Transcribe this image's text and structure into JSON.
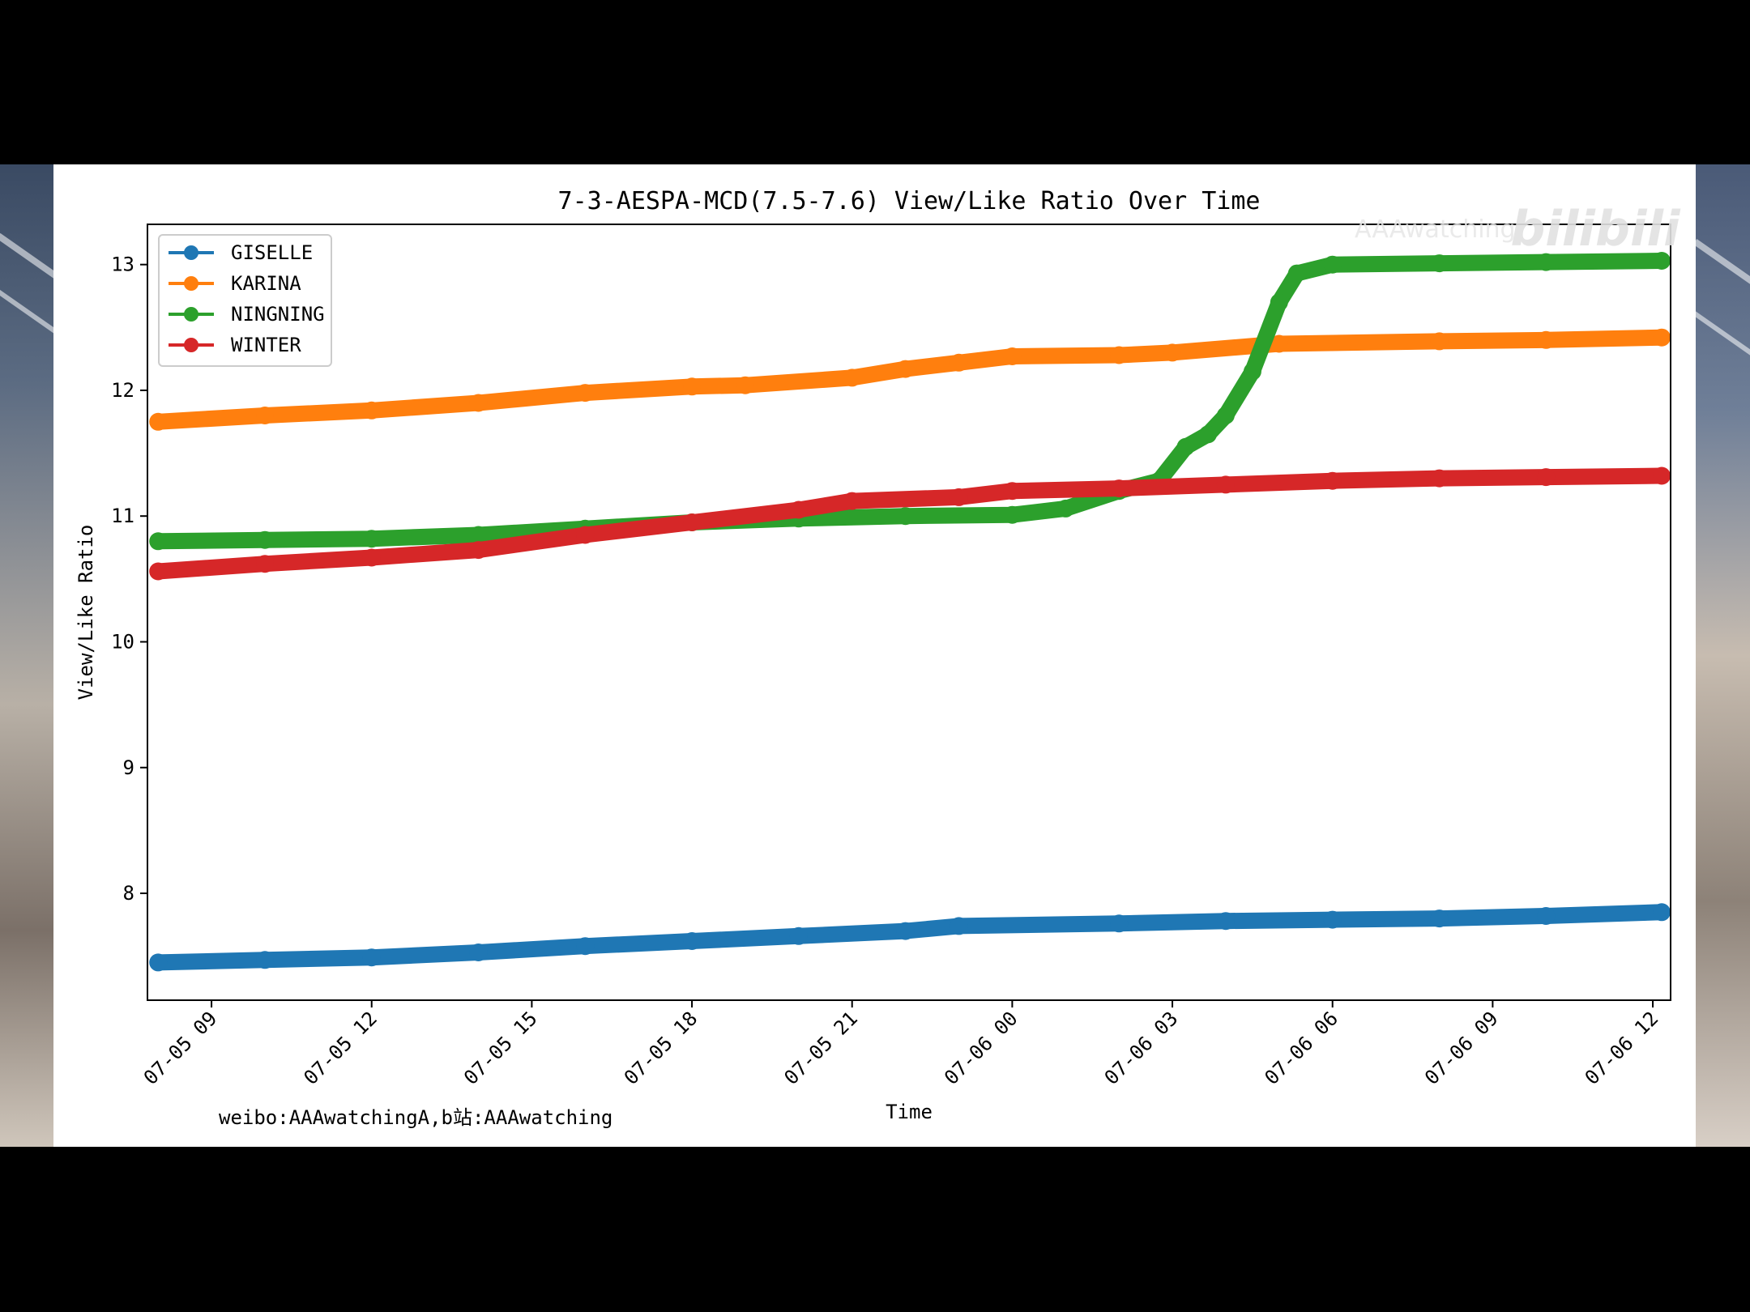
{
  "watermark": {
    "handle": "AAAwatching",
    "logo": "bilibili"
  },
  "chart_data": {
    "type": "scatter",
    "title": "7-3-AESPA-MCD(7.5-7.6) View/Like Ratio Over Time",
    "xlabel": "Time",
    "ylabel": "View/Like Ratio",
    "credit": "weibo:AAAwatchingA,b站:AAAwatching",
    "x_axis": {
      "kind": "datetime",
      "range": [
        "2024-07-05 07:48",
        "2024-07-06 12:20"
      ],
      "ticks": [
        "2024-07-05 09:00",
        "2024-07-05 12:00",
        "2024-07-05 15:00",
        "2024-07-05 18:00",
        "2024-07-05 21:00",
        "2024-07-06 00:00",
        "2024-07-06 03:00",
        "2024-07-06 06:00",
        "2024-07-06 09:00",
        "2024-07-06 12:00"
      ],
      "tick_labels": [
        "07-05 09",
        "07-05 12",
        "07-05 15",
        "07-05 18",
        "07-05 21",
        "07-06 00",
        "07-06 03",
        "07-06 06",
        "07-06 09",
        "07-06 12"
      ]
    },
    "y_axis": {
      "range": [
        7.15,
        13.32
      ],
      "ticks": [
        8,
        9,
        10,
        11,
        12,
        13
      ]
    },
    "grid": false,
    "legend_position": "top-left",
    "series": [
      {
        "name": "GISELLE",
        "color": "#1f77b4",
        "points": [
          [
            "2024-07-05 08:00",
            7.45
          ],
          [
            "2024-07-05 10:00",
            7.47
          ],
          [
            "2024-07-05 12:00",
            7.49
          ],
          [
            "2024-07-05 14:00",
            7.53
          ],
          [
            "2024-07-05 16:00",
            7.58
          ],
          [
            "2024-07-05 18:00",
            7.62
          ],
          [
            "2024-07-05 20:00",
            7.66
          ],
          [
            "2024-07-05 22:00",
            7.7
          ],
          [
            "2024-07-05 23:00",
            7.74
          ],
          [
            "2024-07-06 02:00",
            7.76
          ],
          [
            "2024-07-06 04:00",
            7.78
          ],
          [
            "2024-07-06 06:00",
            7.79
          ],
          [
            "2024-07-06 08:00",
            7.8
          ],
          [
            "2024-07-06 10:00",
            7.82
          ],
          [
            "2024-07-06 12:10",
            7.85
          ]
        ]
      },
      {
        "name": "KARINA",
        "color": "#ff7f0e",
        "points": [
          [
            "2024-07-05 08:00",
            11.75
          ],
          [
            "2024-07-05 10:00",
            11.8
          ],
          [
            "2024-07-05 12:00",
            11.84
          ],
          [
            "2024-07-05 14:00",
            11.9
          ],
          [
            "2024-07-05 16:00",
            11.98
          ],
          [
            "2024-07-05 18:00",
            12.03
          ],
          [
            "2024-07-05 19:00",
            12.04
          ],
          [
            "2024-07-05 21:00",
            12.1
          ],
          [
            "2024-07-05 22:00",
            12.17
          ],
          [
            "2024-07-05 23:00",
            12.22
          ],
          [
            "2024-07-06 00:00",
            12.27
          ],
          [
            "2024-07-06 02:00",
            12.28
          ],
          [
            "2024-07-06 03:00",
            12.3
          ],
          [
            "2024-07-06 05:00",
            12.37
          ],
          [
            "2024-07-06 08:00",
            12.39
          ],
          [
            "2024-07-06 10:00",
            12.4
          ],
          [
            "2024-07-06 12:10",
            12.42
          ]
        ]
      },
      {
        "name": "NINGNING",
        "color": "#2ca02c",
        "points": [
          [
            "2024-07-05 08:00",
            10.8
          ],
          [
            "2024-07-05 10:00",
            10.81
          ],
          [
            "2024-07-05 12:00",
            10.82
          ],
          [
            "2024-07-05 14:00",
            10.85
          ],
          [
            "2024-07-05 16:00",
            10.9
          ],
          [
            "2024-07-05 18:00",
            10.95
          ],
          [
            "2024-07-05 20:00",
            10.98
          ],
          [
            "2024-07-05 22:00",
            11.0
          ],
          [
            "2024-07-06 00:00",
            11.01
          ],
          [
            "2024-07-06 01:00",
            11.06
          ],
          [
            "2024-07-06 02:00",
            11.2
          ],
          [
            "2024-07-06 02:45",
            11.28
          ],
          [
            "2024-07-06 03:15",
            11.55
          ],
          [
            "2024-07-06 03:40",
            11.65
          ],
          [
            "2024-07-06 04:00",
            11.8
          ],
          [
            "2024-07-06 04:30",
            12.15
          ],
          [
            "2024-07-06 05:00",
            12.7
          ],
          [
            "2024-07-06 05:20",
            12.93
          ],
          [
            "2024-07-06 06:00",
            13.0
          ],
          [
            "2024-07-06 08:00",
            13.01
          ],
          [
            "2024-07-06 10:00",
            13.02
          ],
          [
            "2024-07-06 12:10",
            13.03
          ]
        ]
      },
      {
        "name": "WINTER",
        "color": "#d62728",
        "points": [
          [
            "2024-07-05 08:00",
            10.56
          ],
          [
            "2024-07-05 10:00",
            10.62
          ],
          [
            "2024-07-05 12:00",
            10.67
          ],
          [
            "2024-07-05 14:00",
            10.73
          ],
          [
            "2024-07-05 16:00",
            10.85
          ],
          [
            "2024-07-05 18:00",
            10.95
          ],
          [
            "2024-07-05 20:00",
            11.05
          ],
          [
            "2024-07-05 21:00",
            11.12
          ],
          [
            "2024-07-05 23:00",
            11.15
          ],
          [
            "2024-07-06 00:00",
            11.2
          ],
          [
            "2024-07-06 02:00",
            11.22
          ],
          [
            "2024-07-06 04:00",
            11.25
          ],
          [
            "2024-07-06 06:00",
            11.28
          ],
          [
            "2024-07-06 08:00",
            11.3
          ],
          [
            "2024-07-06 10:00",
            11.31
          ],
          [
            "2024-07-06 12:10",
            11.32
          ]
        ]
      }
    ]
  }
}
